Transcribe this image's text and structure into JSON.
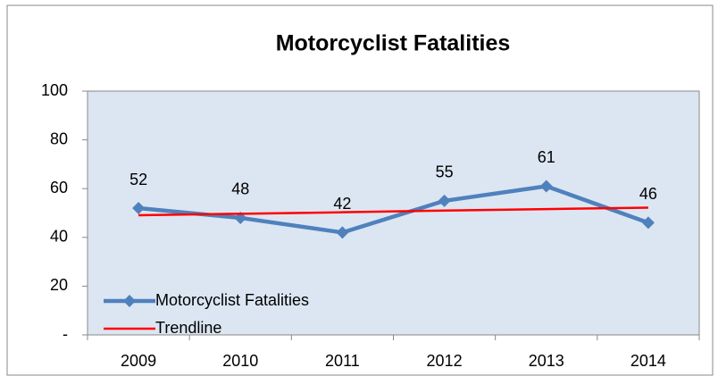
{
  "chart_data": {
    "type": "line",
    "title": "Motorcyclist Fatalities",
    "categories": [
      "2009",
      "2010",
      "2011",
      "2012",
      "2013",
      "2014"
    ],
    "series": [
      {
        "name": "Motorcyclist Fatalities",
        "color": "#4f81bd",
        "values": [
          52,
          48,
          42,
          55,
          61,
          46
        ],
        "marker": "diamond",
        "data_labels": true
      },
      {
        "name": "Trendline",
        "color": "#ff0000",
        "values": [
          49.1,
          49.7,
          50.3,
          51.0,
          51.6,
          52.2
        ]
      }
    ],
    "ylim": [
      0,
      100
    ],
    "yticks": [
      {
        "value": 0,
        "label": "-"
      },
      20,
      40,
      60,
      80,
      100
    ],
    "grid": false,
    "legend": "lower left",
    "plot_background": "#dce6f2"
  }
}
